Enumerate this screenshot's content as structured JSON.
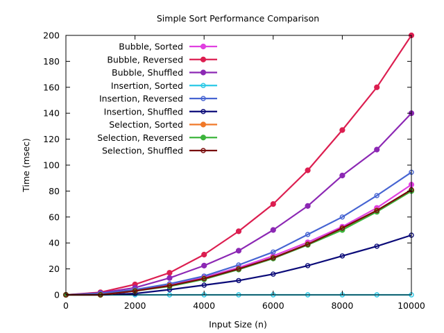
{
  "chart_data": {
    "type": "line",
    "title": "Simple Sort Performance Comparison",
    "xlabel": "Input Size (n)",
    "ylabel": "Time (msec)",
    "xlim": [
      0,
      10000
    ],
    "ylim": [
      0,
      200
    ],
    "xticks": [
      0,
      2000,
      4000,
      6000,
      8000,
      10000
    ],
    "yticks": [
      0,
      20,
      40,
      60,
      80,
      100,
      120,
      140,
      160,
      180,
      200
    ],
    "grid": false,
    "legend_position": "top-left",
    "x": [
      0,
      1000,
      2000,
      3000,
      4000,
      5000,
      6000,
      7000,
      8000,
      9000,
      10000
    ],
    "series": [
      {
        "name": "Bubble, Sorted",
        "color": "#e040e0",
        "marker": "filled-circle",
        "values": [
          0,
          1,
          3.4,
          7.5,
          13.5,
          21,
          30,
          40.5,
          52.5,
          67,
          85
        ]
      },
      {
        "name": "Bubble, Reversed",
        "color": "#dc1e50",
        "marker": "filled-circle",
        "values": [
          0,
          2,
          8,
          17,
          31,
          49,
          70,
          96,
          127,
          160,
          200
        ]
      },
      {
        "name": "Bubble, Shuffled",
        "color": "#8c28b4",
        "marker": "filled-circle",
        "values": [
          0,
          1.5,
          5.5,
          13,
          22.5,
          34,
          50,
          68.5,
          92,
          112,
          140
        ]
      },
      {
        "name": "Insertion, Sorted",
        "color": "#28c8e6",
        "marker": "open-circle",
        "values": [
          0,
          0,
          0,
          0,
          0,
          0,
          0,
          0,
          0,
          0,
          0
        ]
      },
      {
        "name": "Insertion, Reversed",
        "color": "#4664d2",
        "marker": "open-circle",
        "values": [
          0,
          1,
          4,
          8.5,
          14.5,
          23,
          33,
          46.5,
          60,
          76.5,
          94.5
        ]
      },
      {
        "name": "Insertion, Shuffled",
        "color": "#0a0a78",
        "marker": "open-circle",
        "values": [
          0,
          0,
          1,
          4,
          7.5,
          11,
          16,
          22.5,
          30,
          37.5,
          46
        ]
      },
      {
        "name": "Selection, Sorted",
        "color": "#f07828",
        "marker": "filled-circle",
        "values": [
          0,
          0,
          3,
          7,
          12.5,
          20,
          28.5,
          39,
          51,
          65,
          80.5
        ]
      },
      {
        "name": "Selection, Reversed",
        "color": "#3cb43c",
        "marker": "filled-circle",
        "values": [
          0,
          0,
          3,
          6.5,
          12,
          19.5,
          28,
          38.5,
          50,
          64,
          80
        ]
      },
      {
        "name": "Selection, Shuffled",
        "color": "#780a0a",
        "marker": "open-circle",
        "values": [
          0,
          0,
          3,
          7,
          12.5,
          20,
          28.5,
          39,
          51.5,
          65,
          81
        ]
      }
    ]
  }
}
